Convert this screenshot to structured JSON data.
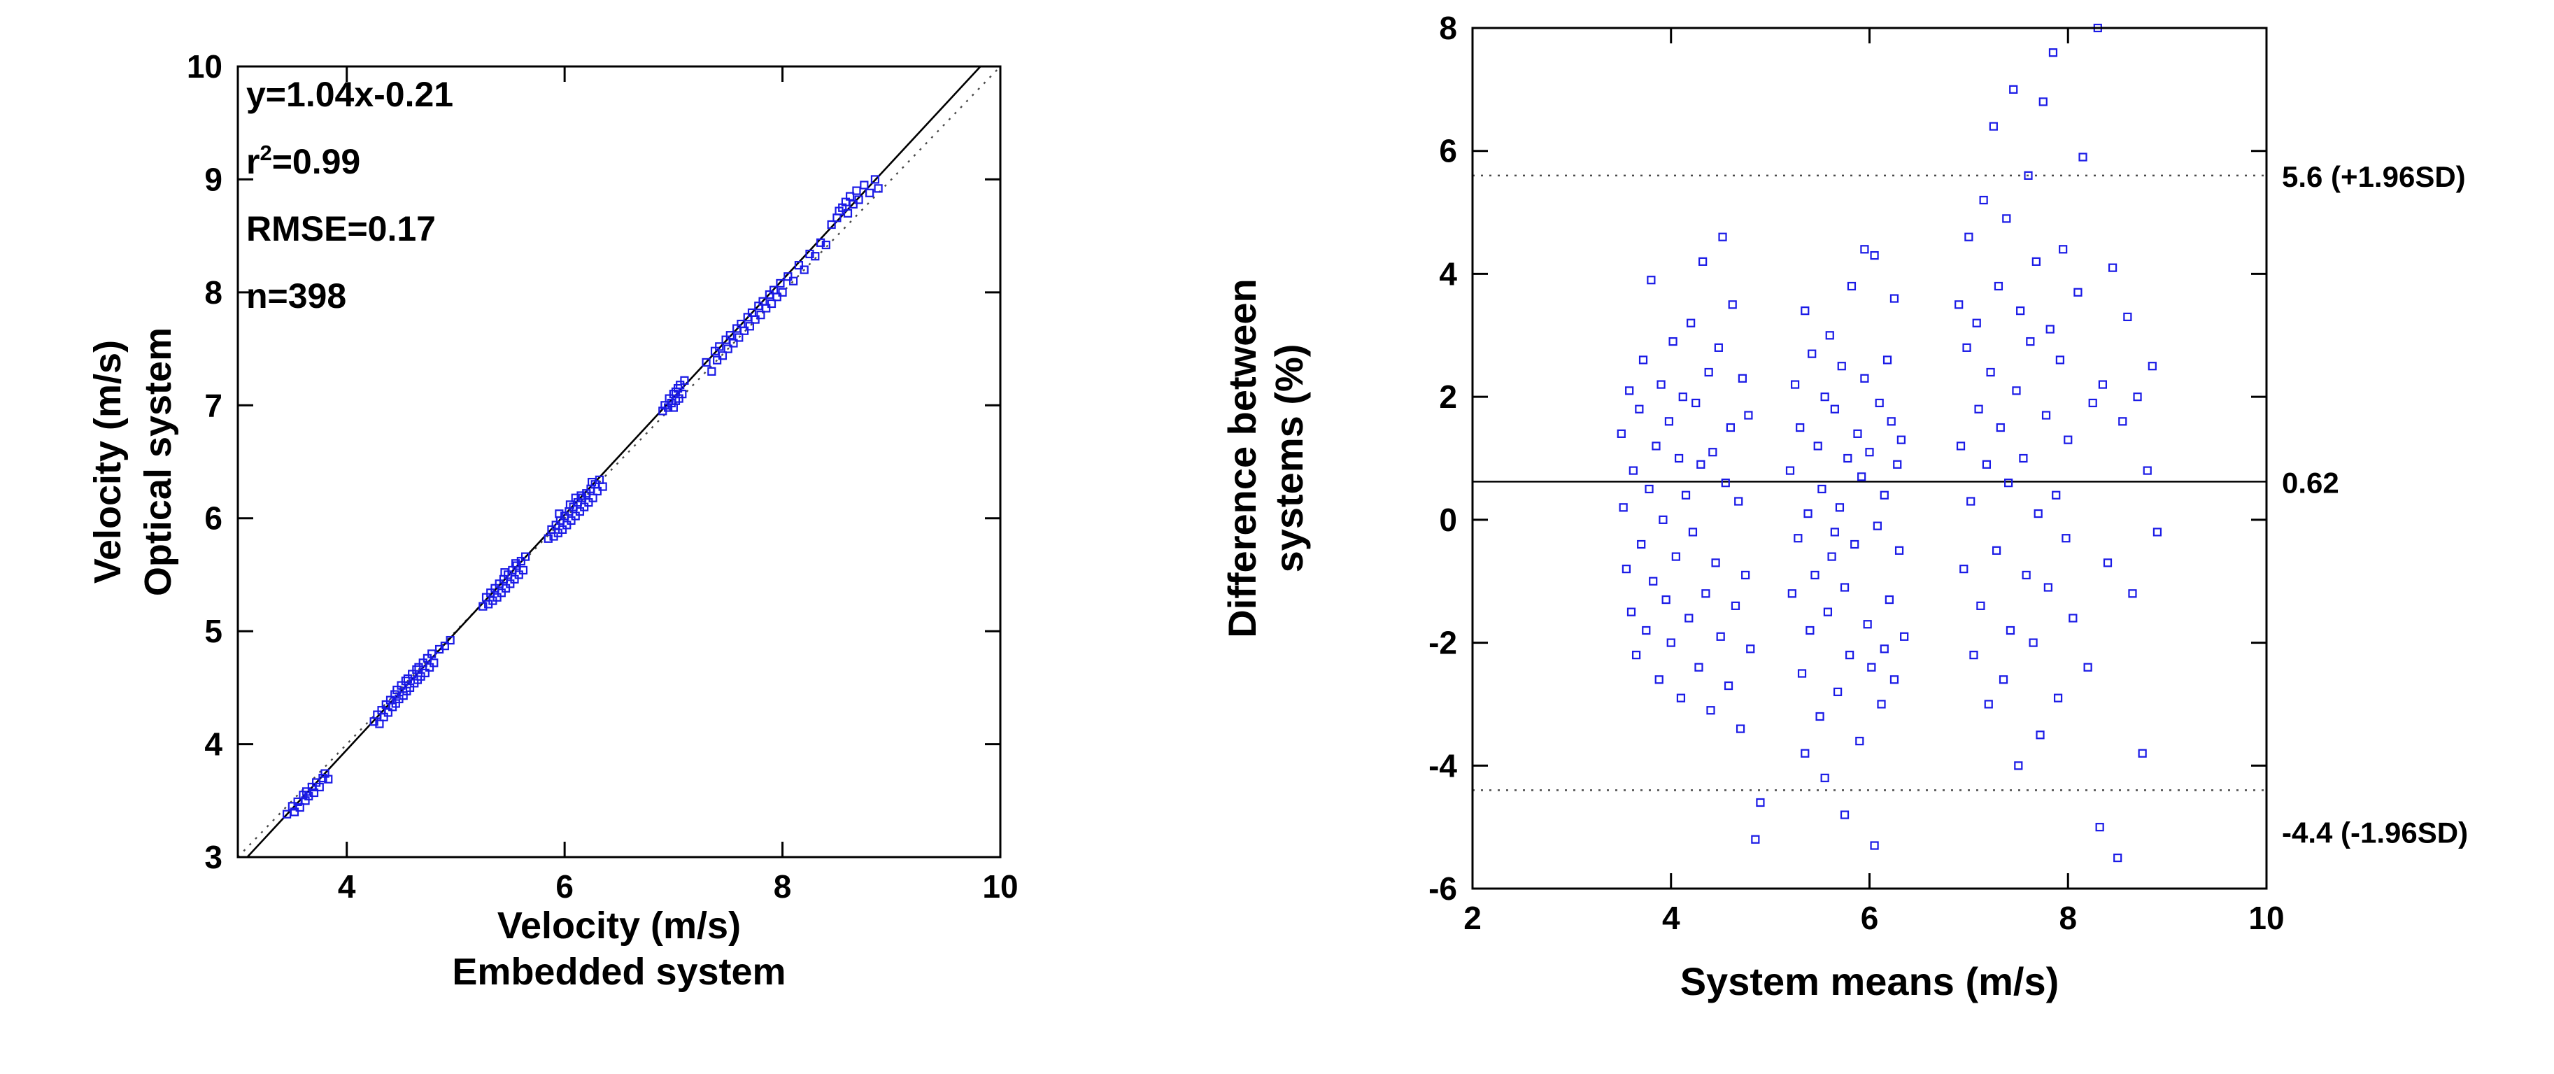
{
  "figure": {
    "background": "#ffffff"
  },
  "style": {
    "marker_color": "#1a1ae6",
    "axis_color": "#000000",
    "dotted_color": "#4a4a4a"
  },
  "chart_data": [
    {
      "id": "scatter-regression",
      "type": "scatter",
      "title": "",
      "xlabel_lines": [
        "Velocity (m/s)",
        "Embedded system"
      ],
      "ylabel_lines": [
        "Velocity (m/s)",
        "Optical system"
      ],
      "xlim": [
        3,
        10
      ],
      "ylim": [
        3,
        10
      ],
      "xticks": [
        4,
        6,
        8,
        10
      ],
      "yticks": [
        3,
        4,
        5,
        6,
        7,
        8,
        9,
        10
      ],
      "grid": false,
      "annotation_lines": [
        "y=1.04x-0.21",
        "r^2=0.99",
        "RMSE=0.17",
        "n=398"
      ],
      "regression": {
        "slope": 1.04,
        "intercept": -0.21,
        "style": "solid"
      },
      "identity_line": {
        "style": "dotted"
      },
      "marker": {
        "shape": "square-open",
        "size": 10
      },
      "points": [
        [
          3.45,
          3.38
        ],
        [
          3.5,
          3.45
        ],
        [
          3.52,
          3.4
        ],
        [
          3.55,
          3.49
        ],
        [
          3.57,
          3.44
        ],
        [
          3.6,
          3.55
        ],
        [
          3.62,
          3.5
        ],
        [
          3.63,
          3.58
        ],
        [
          3.65,
          3.54
        ],
        [
          3.68,
          3.62
        ],
        [
          3.7,
          3.57
        ],
        [
          3.72,
          3.66
        ],
        [
          3.75,
          3.62
        ],
        [
          3.78,
          3.7
        ],
        [
          3.8,
          3.74
        ],
        [
          3.83,
          3.69
        ],
        [
          4.25,
          4.2
        ],
        [
          4.28,
          4.26
        ],
        [
          4.3,
          4.18
        ],
        [
          4.32,
          4.3
        ],
        [
          4.34,
          4.24
        ],
        [
          4.36,
          4.35
        ],
        [
          4.38,
          4.28
        ],
        [
          4.4,
          4.39
        ],
        [
          4.42,
          4.33
        ],
        [
          4.44,
          4.44
        ],
        [
          4.45,
          4.36
        ],
        [
          4.46,
          4.48
        ],
        [
          4.48,
          4.4
        ],
        [
          4.5,
          4.52
        ],
        [
          4.52,
          4.43
        ],
        [
          4.54,
          4.56
        ],
        [
          4.55,
          4.47
        ],
        [
          4.56,
          4.58
        ],
        [
          4.58,
          4.5
        ],
        [
          4.6,
          4.62
        ],
        [
          4.62,
          4.54
        ],
        [
          4.64,
          4.66
        ],
        [
          4.65,
          4.57
        ],
        [
          4.66,
          4.68
        ],
        [
          4.68,
          4.6
        ],
        [
          4.7,
          4.72
        ],
        [
          4.72,
          4.63
        ],
        [
          4.74,
          4.76
        ],
        [
          4.76,
          4.68
        ],
        [
          4.78,
          4.8
        ],
        [
          4.8,
          4.72
        ],
        [
          4.85,
          4.84
        ],
        [
          4.9,
          4.87
        ],
        [
          4.95,
          4.92
        ],
        [
          5.25,
          5.22
        ],
        [
          5.28,
          5.3
        ],
        [
          5.3,
          5.24
        ],
        [
          5.32,
          5.34
        ],
        [
          5.34,
          5.27
        ],
        [
          5.36,
          5.38
        ],
        [
          5.38,
          5.3
        ],
        [
          5.4,
          5.42
        ],
        [
          5.42,
          5.34
        ],
        [
          5.44,
          5.46
        ],
        [
          5.46,
          5.38
        ],
        [
          5.48,
          5.5
        ],
        [
          5.5,
          5.42
        ],
        [
          5.52,
          5.54
        ],
        [
          5.54,
          5.46
        ],
        [
          5.56,
          5.58
        ],
        [
          5.58,
          5.5
        ],
        [
          5.6,
          5.62
        ],
        [
          5.62,
          5.54
        ],
        [
          5.64,
          5.66
        ],
        [
          5.55,
          5.6
        ],
        [
          5.45,
          5.52
        ],
        [
          5.85,
          5.82
        ],
        [
          5.88,
          5.9
        ],
        [
          5.9,
          5.84
        ],
        [
          5.92,
          5.94
        ],
        [
          5.94,
          5.87
        ],
        [
          5.96,
          5.98
        ],
        [
          5.98,
          5.9
        ],
        [
          6.0,
          6.02
        ],
        [
          6.02,
          5.94
        ],
        [
          6.04,
          6.06
        ],
        [
          6.06,
          5.98
        ],
        [
          6.08,
          6.1
        ],
        [
          6.1,
          6.02
        ],
        [
          6.12,
          6.14
        ],
        [
          6.14,
          6.06
        ],
        [
          6.16,
          6.18
        ],
        [
          6.18,
          6.1
        ],
        [
          6.2,
          6.22
        ],
        [
          6.22,
          6.14
        ],
        [
          6.24,
          6.26
        ],
        [
          6.26,
          6.18
        ],
        [
          6.28,
          6.3
        ],
        [
          6.3,
          6.24
        ],
        [
          6.32,
          6.34
        ],
        [
          6.35,
          6.28
        ],
        [
          6.05,
          6.12
        ],
        [
          6.15,
          6.2
        ],
        [
          5.95,
          6.04
        ],
        [
          6.25,
          6.32
        ],
        [
          6.1,
          6.18
        ],
        [
          6.9,
          6.95
        ],
        [
          6.92,
          7.0
        ],
        [
          6.95,
          6.98
        ],
        [
          6.96,
          7.06
        ],
        [
          6.98,
          7.02
        ],
        [
          7.0,
          7.1
        ],
        [
          7.0,
          6.98
        ],
        [
          7.02,
          7.12
        ],
        [
          7.02,
          7.04
        ],
        [
          7.04,
          7.15
        ],
        [
          7.05,
          7.06
        ],
        [
          7.06,
          7.18
        ],
        [
          7.08,
          7.1
        ],
        [
          7.1,
          7.22
        ],
        [
          7.3,
          7.38
        ],
        [
          7.35,
          7.3
        ],
        [
          7.38,
          7.48
        ],
        [
          7.4,
          7.4
        ],
        [
          7.42,
          7.52
        ],
        [
          7.45,
          7.44
        ],
        [
          7.48,
          7.58
        ],
        [
          7.5,
          7.5
        ],
        [
          7.52,
          7.62
        ],
        [
          7.55,
          7.55
        ],
        [
          7.58,
          7.68
        ],
        [
          7.6,
          7.6
        ],
        [
          7.62,
          7.72
        ],
        [
          7.65,
          7.66
        ],
        [
          7.68,
          7.78
        ],
        [
          7.7,
          7.7
        ],
        [
          7.72,
          7.82
        ],
        [
          7.75,
          7.76
        ],
        [
          7.78,
          7.88
        ],
        [
          7.8,
          7.8
        ],
        [
          7.82,
          7.92
        ],
        [
          7.85,
          7.86
        ],
        [
          7.88,
          7.98
        ],
        [
          7.9,
          7.9
        ],
        [
          7.92,
          8.02
        ],
        [
          7.95,
          7.96
        ],
        [
          7.98,
          8.08
        ],
        [
          8.0,
          8.0
        ],
        [
          8.05,
          8.14
        ],
        [
          8.1,
          8.1
        ],
        [
          8.15,
          8.24
        ],
        [
          8.2,
          8.2
        ],
        [
          8.25,
          8.34
        ],
        [
          8.3,
          8.32
        ],
        [
          8.35,
          8.44
        ],
        [
          8.4,
          8.42
        ],
        [
          8.45,
          8.6
        ],
        [
          8.5,
          8.66
        ],
        [
          8.52,
          8.72
        ],
        [
          8.55,
          8.75
        ],
        [
          8.58,
          8.8
        ],
        [
          8.6,
          8.7
        ],
        [
          8.62,
          8.85
        ],
        [
          8.65,
          8.78
        ],
        [
          8.68,
          8.9
        ],
        [
          8.7,
          8.82
        ],
        [
          8.75,
          8.95
        ],
        [
          8.8,
          8.88
        ],
        [
          8.85,
          9.0
        ],
        [
          8.88,
          8.92
        ]
      ]
    },
    {
      "id": "bland-altman",
      "type": "scatter",
      "title": "",
      "xlabel_lines": [
        "System means (m/s)"
      ],
      "ylabel_lines": [
        "Difference between",
        "systems (%)"
      ],
      "xlim": [
        2,
        10
      ],
      "ylim": [
        -6,
        8
      ],
      "xticks": [
        2,
        4,
        6,
        8,
        10
      ],
      "yticks": [
        -6,
        -4,
        -2,
        0,
        2,
        4,
        6,
        8
      ],
      "grid": false,
      "marker": {
        "shape": "square-open",
        "size": 10
      },
      "lines": [
        {
          "y": 5.6,
          "style": "dotted",
          "label": "5.6 (+1.96SD)",
          "label_offset": 16
        },
        {
          "y": 0.62,
          "style": "solid",
          "label": "0.62",
          "label_offset": 16
        },
        {
          "y": -4.4,
          "style": "dotted",
          "label": "-4.4 (-1.96SD)",
          "label_offset": 75
        }
      ],
      "points": [
        [
          3.5,
          1.4
        ],
        [
          3.52,
          0.2
        ],
        [
          3.55,
          -0.8
        ],
        [
          3.58,
          2.1
        ],
        [
          3.6,
          -1.5
        ],
        [
          3.62,
          0.8
        ],
        [
          3.65,
          -2.2
        ],
        [
          3.68,
          1.8
        ],
        [
          3.7,
          -0.4
        ],
        [
          3.72,
          2.6
        ],
        [
          3.75,
          -1.8
        ],
        [
          3.78,
          0.5
        ],
        [
          3.8,
          3.9
        ],
        [
          3.82,
          -1.0
        ],
        [
          3.85,
          1.2
        ],
        [
          3.88,
          -2.6
        ],
        [
          3.9,
          2.2
        ],
        [
          3.92,
          0.0
        ],
        [
          3.95,
          -1.3
        ],
        [
          3.98,
          1.6
        ],
        [
          4.0,
          -2.0
        ],
        [
          4.02,
          2.9
        ],
        [
          4.05,
          -0.6
        ],
        [
          4.08,
          1.0
        ],
        [
          4.1,
          -2.9
        ],
        [
          4.12,
          2.0
        ],
        [
          4.15,
          0.4
        ],
        [
          4.18,
          -1.6
        ],
        [
          4.2,
          3.2
        ],
        [
          4.22,
          -0.2
        ],
        [
          4.25,
          1.9
        ],
        [
          4.28,
          -2.4
        ],
        [
          4.3,
          0.9
        ],
        [
          4.32,
          4.2
        ],
        [
          4.35,
          -1.2
        ],
        [
          4.38,
          2.4
        ],
        [
          4.4,
          -3.1
        ],
        [
          4.42,
          1.1
        ],
        [
          4.45,
          -0.7
        ],
        [
          4.48,
          2.8
        ],
        [
          4.5,
          -1.9
        ],
        [
          4.52,
          4.6
        ],
        [
          4.55,
          0.6
        ],
        [
          4.58,
          -2.7
        ],
        [
          4.6,
          1.5
        ],
        [
          4.62,
          3.5
        ],
        [
          4.65,
          -1.4
        ],
        [
          4.68,
          0.3
        ],
        [
          4.7,
          -3.4
        ],
        [
          4.72,
          2.3
        ],
        [
          4.75,
          -0.9
        ],
        [
          4.78,
          1.7
        ],
        [
          4.8,
          -2.1
        ],
        [
          4.85,
          -5.2
        ],
        [
          4.9,
          -4.6
        ],
        [
          5.2,
          0.8
        ],
        [
          5.22,
          -1.2
        ],
        [
          5.25,
          2.2
        ],
        [
          5.28,
          -0.3
        ],
        [
          5.3,
          1.5
        ],
        [
          5.32,
          -2.5
        ],
        [
          5.35,
          3.4
        ],
        [
          5.38,
          0.1
        ],
        [
          5.4,
          -1.8
        ],
        [
          5.42,
          2.7
        ],
        [
          5.45,
          -0.9
        ],
        [
          5.48,
          1.2
        ],
        [
          5.5,
          -3.2
        ],
        [
          5.52,
          0.5
        ],
        [
          5.55,
          2.0
        ],
        [
          5.58,
          -1.5
        ],
        [
          5.6,
          3.0
        ],
        [
          5.62,
          -0.6
        ],
        [
          5.65,
          1.8
        ],
        [
          5.68,
          -2.8
        ],
        [
          5.7,
          0.2
        ],
        [
          5.72,
          2.5
        ],
        [
          5.75,
          -1.1
        ],
        [
          5.78,
          1.0
        ],
        [
          5.8,
          -2.2
        ],
        [
          5.82,
          3.8
        ],
        [
          5.85,
          -0.4
        ],
        [
          5.88,
          1.4
        ],
        [
          5.9,
          -3.6
        ],
        [
          5.92,
          0.7
        ],
        [
          5.95,
          2.3
        ],
        [
          5.98,
          -1.7
        ],
        [
          6.0,
          1.1
        ],
        [
          6.02,
          -2.4
        ],
        [
          6.05,
          4.3
        ],
        [
          6.08,
          -0.1
        ],
        [
          6.1,
          1.9
        ],
        [
          6.12,
          -3.0
        ],
        [
          6.15,
          0.4
        ],
        [
          6.18,
          2.6
        ],
        [
          6.2,
          -1.3
        ],
        [
          6.22,
          1.6
        ],
        [
          6.25,
          -2.6
        ],
        [
          6.28,
          0.9
        ],
        [
          6.3,
          -0.5
        ],
        [
          6.32,
          1.3
        ],
        [
          6.35,
          -1.9
        ],
        [
          5.55,
          -4.2
        ],
        [
          5.75,
          -4.8
        ],
        [
          6.05,
          -5.3
        ],
        [
          5.35,
          -3.8
        ],
        [
          5.95,
          4.4
        ],
        [
          6.25,
          3.6
        ],
        [
          5.65,
          -0.2
        ],
        [
          6.15,
          -2.1
        ],
        [
          6.9,
          3.5
        ],
        [
          6.92,
          1.2
        ],
        [
          6.95,
          -0.8
        ],
        [
          6.98,
          2.8
        ],
        [
          7.0,
          4.6
        ],
        [
          7.02,
          0.3
        ],
        [
          7.05,
          -2.2
        ],
        [
          7.08,
          3.2
        ],
        [
          7.1,
          1.8
        ],
        [
          7.12,
          -1.4
        ],
        [
          7.15,
          5.2
        ],
        [
          7.18,
          0.9
        ],
        [
          7.2,
          -3.0
        ],
        [
          7.22,
          2.4
        ],
        [
          7.25,
          6.4
        ],
        [
          7.28,
          -0.5
        ],
        [
          7.3,
          3.8
        ],
        [
          7.32,
          1.5
        ],
        [
          7.35,
          -2.6
        ],
        [
          7.38,
          4.9
        ],
        [
          7.4,
          0.6
        ],
        [
          7.42,
          -1.8
        ],
        [
          7.45,
          7.0
        ],
        [
          7.48,
          2.1
        ],
        [
          7.5,
          -4.0
        ],
        [
          7.52,
          3.4
        ],
        [
          7.55,
          1.0
        ],
        [
          7.58,
          -0.9
        ],
        [
          7.6,
          5.6
        ],
        [
          7.62,
          2.9
        ],
        [
          7.65,
          -2.0
        ],
        [
          7.68,
          4.2
        ],
        [
          7.7,
          0.1
        ],
        [
          7.72,
          -3.5
        ],
        [
          7.75,
          6.8
        ],
        [
          7.78,
          1.7
        ],
        [
          7.8,
          -1.1
        ],
        [
          7.82,
          3.1
        ],
        [
          7.85,
          7.6
        ],
        [
          7.88,
          0.4
        ],
        [
          7.9,
          -2.9
        ],
        [
          7.92,
          2.6
        ],
        [
          7.95,
          4.4
        ],
        [
          7.98,
          -0.3
        ],
        [
          8.0,
          1.3
        ],
        [
          8.05,
          -1.6
        ],
        [
          8.1,
          3.7
        ],
        [
          8.15,
          5.9
        ],
        [
          8.2,
          -2.4
        ],
        [
          8.25,
          1.9
        ],
        [
          8.3,
          8.0
        ],
        [
          8.32,
          -5.0
        ],
        [
          8.35,
          2.2
        ],
        [
          8.4,
          -0.7
        ],
        [
          8.45,
          4.1
        ],
        [
          8.5,
          -5.5
        ],
        [
          8.55,
          1.6
        ],
        [
          8.6,
          3.3
        ],
        [
          8.65,
          -1.2
        ],
        [
          8.7,
          2.0
        ],
        [
          8.75,
          -3.8
        ],
        [
          8.8,
          0.8
        ],
        [
          8.85,
          2.5
        ],
        [
          8.9,
          -0.2
        ]
      ]
    }
  ]
}
